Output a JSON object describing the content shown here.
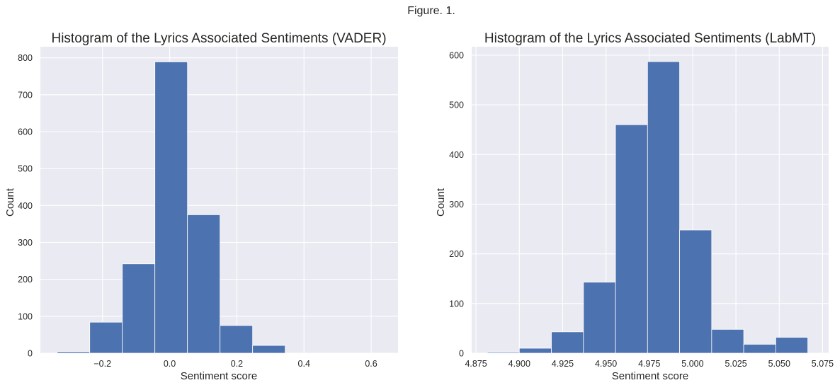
{
  "figure": {
    "title": "Figure. 1.",
    "colors": {
      "background": "#eaeaf2",
      "bar": "#4c72b0",
      "grid": "#ffffff",
      "text": "#262626"
    }
  },
  "chart_data": [
    {
      "type": "bar",
      "histogram": true,
      "title": "Histogram of the Lyrics Associated Sentiments (VADER)",
      "xlabel": "Sentiment score",
      "ylabel": "Count",
      "xlim": [
        -0.385,
        0.68
      ],
      "ylim": [
        0,
        830
      ],
      "xticks": [
        -0.2,
        0.0,
        0.2,
        0.4,
        0.6
      ],
      "xtick_labels": [
        "−0.2",
        "0.0",
        "0.2",
        "0.4",
        "0.6"
      ],
      "yticks": [
        0,
        100,
        200,
        300,
        400,
        500,
        600,
        700,
        800
      ],
      "ytick_labels": [
        "0",
        "100",
        "200",
        "300",
        "400",
        "500",
        "600",
        "700",
        "800"
      ],
      "bin_edges": [
        -0.335,
        -0.238,
        -0.141,
        -0.044,
        0.053,
        0.15,
        0.247,
        0.344,
        0.441,
        0.538,
        0.635
      ],
      "values": [
        4,
        84,
        242,
        789,
        375,
        75,
        21,
        0,
        0,
        0
      ],
      "grid": true
    },
    {
      "type": "bar",
      "histogram": true,
      "title": "Histogram of the Lyrics Associated Sentiments (LabMT)",
      "xlabel": "Sentiment score",
      "ylabel": "Count",
      "xlim": [
        4.8725,
        5.0785
      ],
      "ylim": [
        0,
        617
      ],
      "xticks": [
        4.875,
        4.9,
        4.925,
        4.95,
        4.975,
        5.0,
        5.025,
        5.05,
        5.075
      ],
      "xtick_labels": [
        "4.875",
        "4.900",
        "4.925",
        "4.950",
        "4.975",
        "5.000",
        "5.025",
        "5.050",
        "5.075"
      ],
      "yticks": [
        0,
        100,
        200,
        300,
        400,
        500,
        600
      ],
      "ytick_labels": [
        "0",
        "100",
        "200",
        "300",
        "400",
        "500",
        "600"
      ],
      "bin_edges": [
        4.8815,
        4.9,
        4.9185,
        4.937,
        4.9555,
        4.974,
        4.9925,
        5.011,
        5.0295,
        5.048,
        5.0665
      ],
      "values": [
        2,
        10,
        43,
        143,
        460,
        587,
        248,
        48,
        18,
        32
      ],
      "grid": true
    }
  ]
}
